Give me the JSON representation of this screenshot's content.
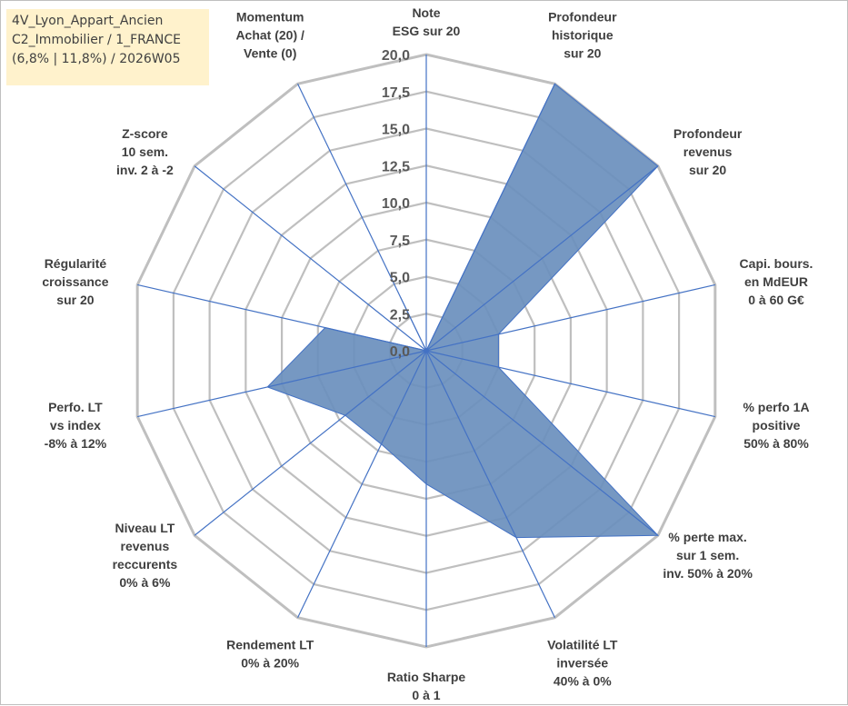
{
  "info_box": {
    "line1": "4V_Lyon_Appart_Ancien",
    "line2": "C2_Immobilier / 1_FRANCE",
    "line3": "(6,8% | 11,8%) / 2026W05"
  },
  "chart_data": {
    "type": "radar",
    "title": "",
    "axes": [
      [
        "Note",
        "ESG sur 20"
      ],
      [
        "Profondeur",
        "historique",
        "sur 20"
      ],
      [
        "Profondeur",
        "revenus",
        "sur 20"
      ],
      [
        "Capi. bours.",
        "en MdEUR",
        "0 à 60 G€"
      ],
      [
        "% perfo 1A",
        "positive",
        "50% à 80%"
      ],
      [
        "% perte max.",
        "sur 1 sem.",
        "inv. 50% à 20%"
      ],
      [
        "Volatilité LT",
        "inversée",
        "40% à 0%"
      ],
      [
        "Ratio Sharpe",
        "0 à 1"
      ],
      [
        "Rendement LT",
        "0% à 20%"
      ],
      [
        "Niveau LT",
        "revenus",
        "reccurents",
        "0% à 6%"
      ],
      [
        "Perfo. LT",
        "vs index",
        "-8% à 12%"
      ],
      [
        "Régularité",
        "croissance",
        "sur 20"
      ],
      [
        "Z-score",
        "10 sem.",
        "inv. 2 à -2"
      ],
      [
        "Momentum",
        "Achat (20) /",
        "Vente (0)"
      ]
    ],
    "values": [
      0,
      20,
      20,
      5,
      5,
      20,
      14,
      9,
      7,
      7,
      11,
      7,
      0,
      4
    ],
    "r_range": [
      0,
      20
    ],
    "ticks": [
      "0,0",
      "2,5",
      "5,0",
      "7,5",
      "10,0",
      "12,5",
      "15,0",
      "17,5",
      "20,0"
    ],
    "grid": true,
    "legend": "none",
    "fill_color": "#6a8fbd",
    "line_color": "#4472c4",
    "grid_color": "#bfbfbf"
  }
}
